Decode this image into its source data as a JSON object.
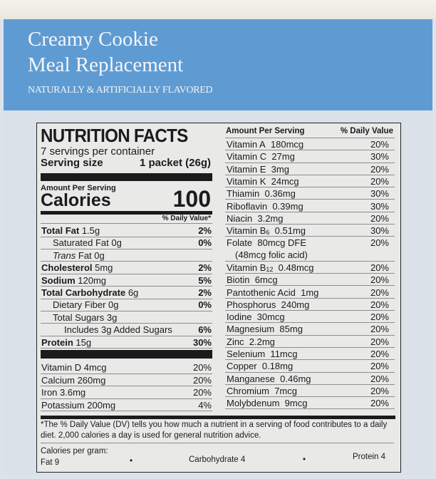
{
  "package": {
    "title_line1": "Creamy Cookie",
    "title_line2": "Meal Replacement",
    "flavor": "NATURALLY & ARTIFICIALLY FLAVORED",
    "colors": {
      "band": "#5f9bd3",
      "label_bg": "#e9e9e8"
    }
  },
  "facts": {
    "heading": "NUTRITION FACTS",
    "servings": "7 servings per container",
    "serving_size_label": "Serving size",
    "serving_size_value": "1 packet (26g)",
    "amount_per_serving": "Amount Per Serving",
    "calories_label": "Calories",
    "calories_value": "100",
    "daily_value_header": "% Daily Value*",
    "nutrients": [
      {
        "bold": "Total Fat",
        "text": " 1.5g",
        "dv": "2%",
        "indent": 0
      },
      {
        "bold": "",
        "text": "Saturated Fat 0g",
        "dv": "0%",
        "indent": 1
      },
      {
        "italic": "Trans",
        "text": " Fat 0g",
        "dv": "",
        "indent": 1
      },
      {
        "bold": "Cholesterol",
        "text": " 5mg",
        "dv": "2%",
        "indent": 0
      },
      {
        "bold": "Sodium",
        "text": " 120mg",
        "dv": "5%",
        "indent": 0
      },
      {
        "bold": "Total Carbohydrate",
        "text": " 6g",
        "dv": "2%",
        "indent": 0
      },
      {
        "bold": "",
        "text": "Dietary Fiber 0g",
        "dv": "0%",
        "indent": 1
      },
      {
        "bold": "",
        "text": "Total Sugars 3g",
        "dv": "",
        "indent": 1
      },
      {
        "bold": "",
        "text": "Includes 3g Added Sugars",
        "dv": "6%",
        "indent": 2
      },
      {
        "bold": "Protein",
        "text": " 15g",
        "dv": "30%",
        "indent": 0
      }
    ],
    "minerals_left": [
      {
        "text": "Vitamin D 4mcg",
        "dv": "20%"
      },
      {
        "text": "Calcium 260mg",
        "dv": "20%"
      },
      {
        "text": "Iron 3.6mg",
        "dv": "20%"
      },
      {
        "text": "Potassium 200mg",
        "dv": "4%"
      }
    ],
    "right_header_amount": "Amount Per Serving",
    "right_header_dv": "% Daily Value",
    "vitamins": [
      {
        "name": "Vitamin A",
        "amount": "180mcg",
        "dv": "20%"
      },
      {
        "name": "Vitamin C",
        "amount": "27mg",
        "dv": "30%"
      },
      {
        "name": "Vitamin E",
        "amount": "3mg",
        "dv": "20%"
      },
      {
        "name": "Vitamin K",
        "amount": "24mcg",
        "dv": "20%"
      },
      {
        "name": "Thiamin",
        "amount": "0.36mg",
        "dv": "30%"
      },
      {
        "name": "Riboflavin",
        "amount": "0.39mg",
        "dv": "30%"
      },
      {
        "name": "Niacin",
        "amount": "3.2mg",
        "dv": "20%"
      },
      {
        "name": "Vitamin B",
        "sub": "6",
        "amount": "0.51mg",
        "dv": "30%"
      },
      {
        "name": "Folate",
        "amount": "80mcg DFE",
        "note": "(48mcg folic acid)",
        "dv": "20%"
      },
      {
        "name": "Vitamin B",
        "sub": "12",
        "amount": "0.48mcg",
        "dv": "20%"
      },
      {
        "name": "Biotin",
        "amount": "6mcg",
        "dv": "20%"
      },
      {
        "name": "Pantothenic Acid",
        "amount": "1mg",
        "dv": "20%"
      },
      {
        "name": "Phosphorus",
        "amount": "240mg",
        "dv": "20%"
      },
      {
        "name": "Iodine",
        "amount": "30mcg",
        "dv": "20%"
      },
      {
        "name": "Magnesium",
        "amount": "85mg",
        "dv": "20%"
      },
      {
        "name": "Zinc",
        "amount": "2.2mg",
        "dv": "20%"
      },
      {
        "name": "Selenium",
        "amount": "11mcg",
        "dv": "20%"
      },
      {
        "name": "Copper",
        "amount": "0.18mg",
        "dv": "20%"
      },
      {
        "name": "Manganese",
        "amount": "0.46mg",
        "dv": "20%"
      },
      {
        "name": "Chromium",
        "amount": "7mcg",
        "dv": "20%"
      },
      {
        "name": "Molybdenum",
        "amount": "9mcg",
        "dv": "20%"
      }
    ],
    "footnote": "*The % Daily Value (DV) tells you how much a nutrient in a serving of food contributes to a daily diet. 2,000 calories a day is used for general nutrition advice.",
    "calories_per_gram_label": "Calories per gram:",
    "fat": "Fat 9",
    "carbohydrate": "Carbohydrate 4",
    "protein": "Protein 4",
    "bullet": "•"
  }
}
